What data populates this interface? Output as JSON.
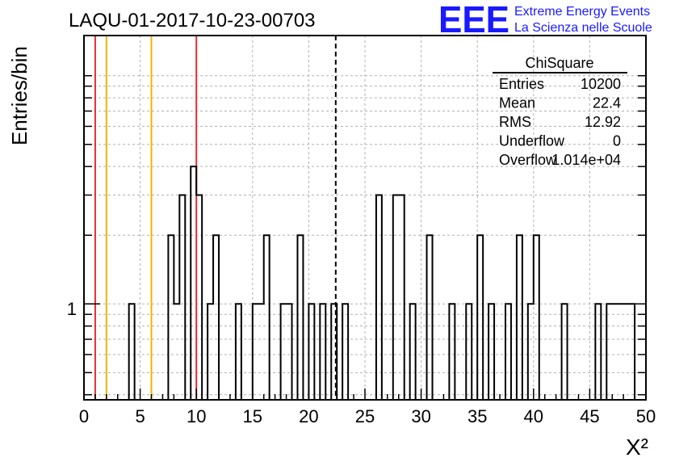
{
  "chart_data": {
    "type": "histogram",
    "title": "LAQU-01-2017-10-23-00703",
    "xlabel": "X²",
    "ylabel": "Entries/bin",
    "xlim": [
      0,
      50
    ],
    "y_scale": "log",
    "ylim": [
      0.38,
      15
    ],
    "grid": true,
    "bin_width": 0.5,
    "bins": [
      {
        "x0": 4.0,
        "y": 1
      },
      {
        "x0": 7.5,
        "y": 2
      },
      {
        "x0": 8.0,
        "y": 1
      },
      {
        "x0": 8.5,
        "y": 3
      },
      {
        "x0": 9.5,
        "y": 4
      },
      {
        "x0": 10.0,
        "y": 3
      },
      {
        "x0": 11.0,
        "y": 1
      },
      {
        "x0": 11.5,
        "y": 2
      },
      {
        "x0": 13.5,
        "y": 1
      },
      {
        "x0": 15.0,
        "y": 1
      },
      {
        "x0": 15.5,
        "y": 1
      },
      {
        "x0": 16.0,
        "y": 2
      },
      {
        "x0": 17.5,
        "y": 1
      },
      {
        "x0": 18.0,
        "y": 1
      },
      {
        "x0": 19.0,
        "y": 2
      },
      {
        "x0": 20.0,
        "y": 1
      },
      {
        "x0": 21.0,
        "y": 1
      },
      {
        "x0": 22.0,
        "y": 1
      },
      {
        "x0": 23.0,
        "y": 1
      },
      {
        "x0": 26.0,
        "y": 3
      },
      {
        "x0": 27.5,
        "y": 3
      },
      {
        "x0": 28.0,
        "y": 3
      },
      {
        "x0": 29.0,
        "y": 1
      },
      {
        "x0": 30.5,
        "y": 2
      },
      {
        "x0": 32.5,
        "y": 1
      },
      {
        "x0": 34.0,
        "y": 1
      },
      {
        "x0": 35.0,
        "y": 2
      },
      {
        "x0": 36.0,
        "y": 1
      },
      {
        "x0": 37.5,
        "y": 1
      },
      {
        "x0": 38.5,
        "y": 2
      },
      {
        "x0": 39.5,
        "y": 1
      },
      {
        "x0": 40.0,
        "y": 2
      },
      {
        "x0": 42.5,
        "y": 1
      },
      {
        "x0": 45.5,
        "y": 1
      },
      {
        "x0": 46.5,
        "y": 1
      },
      {
        "x0": 47.0,
        "y": 1
      },
      {
        "x0": 47.5,
        "y": 1
      },
      {
        "x0": 48.0,
        "y": 1
      },
      {
        "x0": 48.5,
        "y": 1
      }
    ],
    "x_ticks": [
      "0",
      "5",
      "10",
      "15",
      "20",
      "25",
      "30",
      "35",
      "40",
      "45",
      "50"
    ],
    "y_tick_label": "1",
    "y_tick_value": 1,
    "reference_lines": [
      {
        "x": 1,
        "color": "#e03030",
        "style": "solid"
      },
      {
        "x": 2,
        "color": "#f0b400",
        "style": "solid"
      },
      {
        "x": 6,
        "color": "#f0b400",
        "style": "solid"
      },
      {
        "x": 10,
        "color": "#e03030",
        "style": "solid"
      },
      {
        "x": 22.4,
        "color": "#000000",
        "style": "dashed"
      }
    ],
    "stats": {
      "name": "ChiSquare",
      "rows": [
        {
          "label": "Entries",
          "value": "10200"
        },
        {
          "label": "Mean",
          "value": "22.4"
        },
        {
          "label": "RMS",
          "value": "12.92"
        },
        {
          "label": "Underflow",
          "value": "0"
        },
        {
          "label": "Overflow",
          "value": "1.014e+04"
        }
      ]
    }
  },
  "logo": {
    "mark": "EEE",
    "line1": "Extreme Energy Events",
    "line2": "La Scienza nelle Scuole",
    "color": "#1a1aff"
  }
}
